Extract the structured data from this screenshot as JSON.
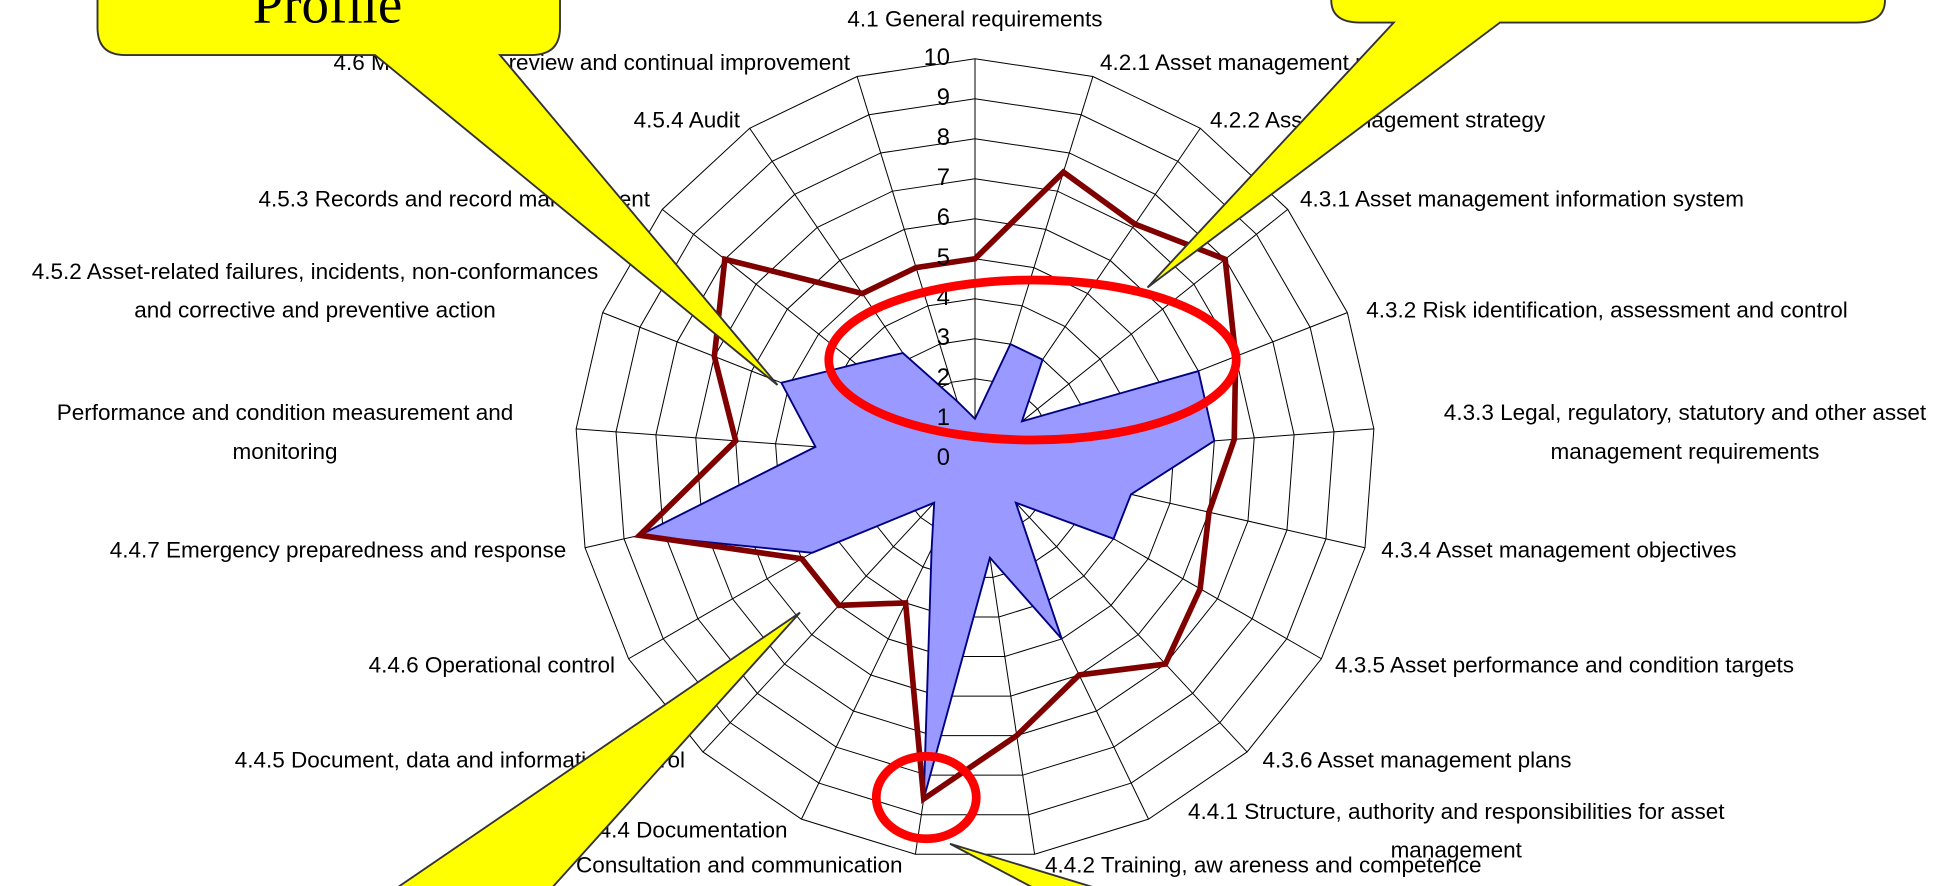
{
  "chart_data": {
    "type": "radar",
    "categories": [
      "4.1 General requirements",
      "4.2.1 Asset management policy",
      "4.2.2 Asset management strategy",
      "4.3.1 Asset management information system",
      "4.3.2 Risk identification, assessment and control",
      "4.3.3 Legal, regulatory, statutory and other asset management requirements",
      "4.3.4 Asset management objectives",
      "4.3.5 Asset performance and condition targets",
      "4.3.6 Asset management plans",
      "4.4.1 Structure, authority and responsibilities for asset management",
      "4.4.2 Training, aw areness and competence",
      "4.4.3 Consultation and communication",
      "4.4.4 Documentation",
      "4.4.5 Document, data and information control",
      "4.4.6 Operational control",
      "4.4.7 Emergency preparedness and response",
      "Performance and condition measurement and monitoring",
      "4.5.2 Asset-related failures, incidents, non-conformances and corrective and preventive action",
      "4.5.3 Records and record management",
      "4.5.4 Audit",
      "4.6 Management review and continual improvement"
    ],
    "series": [
      {
        "color": "#9999ff",
        "values": [
          1,
          3,
          3,
          1.5,
          6,
          6,
          4,
          4,
          1.5,
          5,
          2.5,
          8.6,
          2.5,
          1.5,
          4.7,
          8.6,
          4,
          5.2,
          3.8,
          3.2,
          1.5
        ]
      },
      {
        "color": "#800000",
        "values": [
          5,
          7.5,
          7.1,
          8,
          7,
          6.5,
          6,
          6.5,
          7,
          6,
          7,
          8.6,
          4,
          5,
          5,
          8.6,
          6,
          7,
          8,
          5,
          5
        ]
      }
    ],
    "ylim": [
      0,
      10
    ],
    "yticks": [
      0,
      1,
      2,
      3,
      4,
      5,
      6,
      7,
      8,
      9,
      10
    ],
    "grid": true,
    "annotations": [
      "Profile"
    ]
  }
}
